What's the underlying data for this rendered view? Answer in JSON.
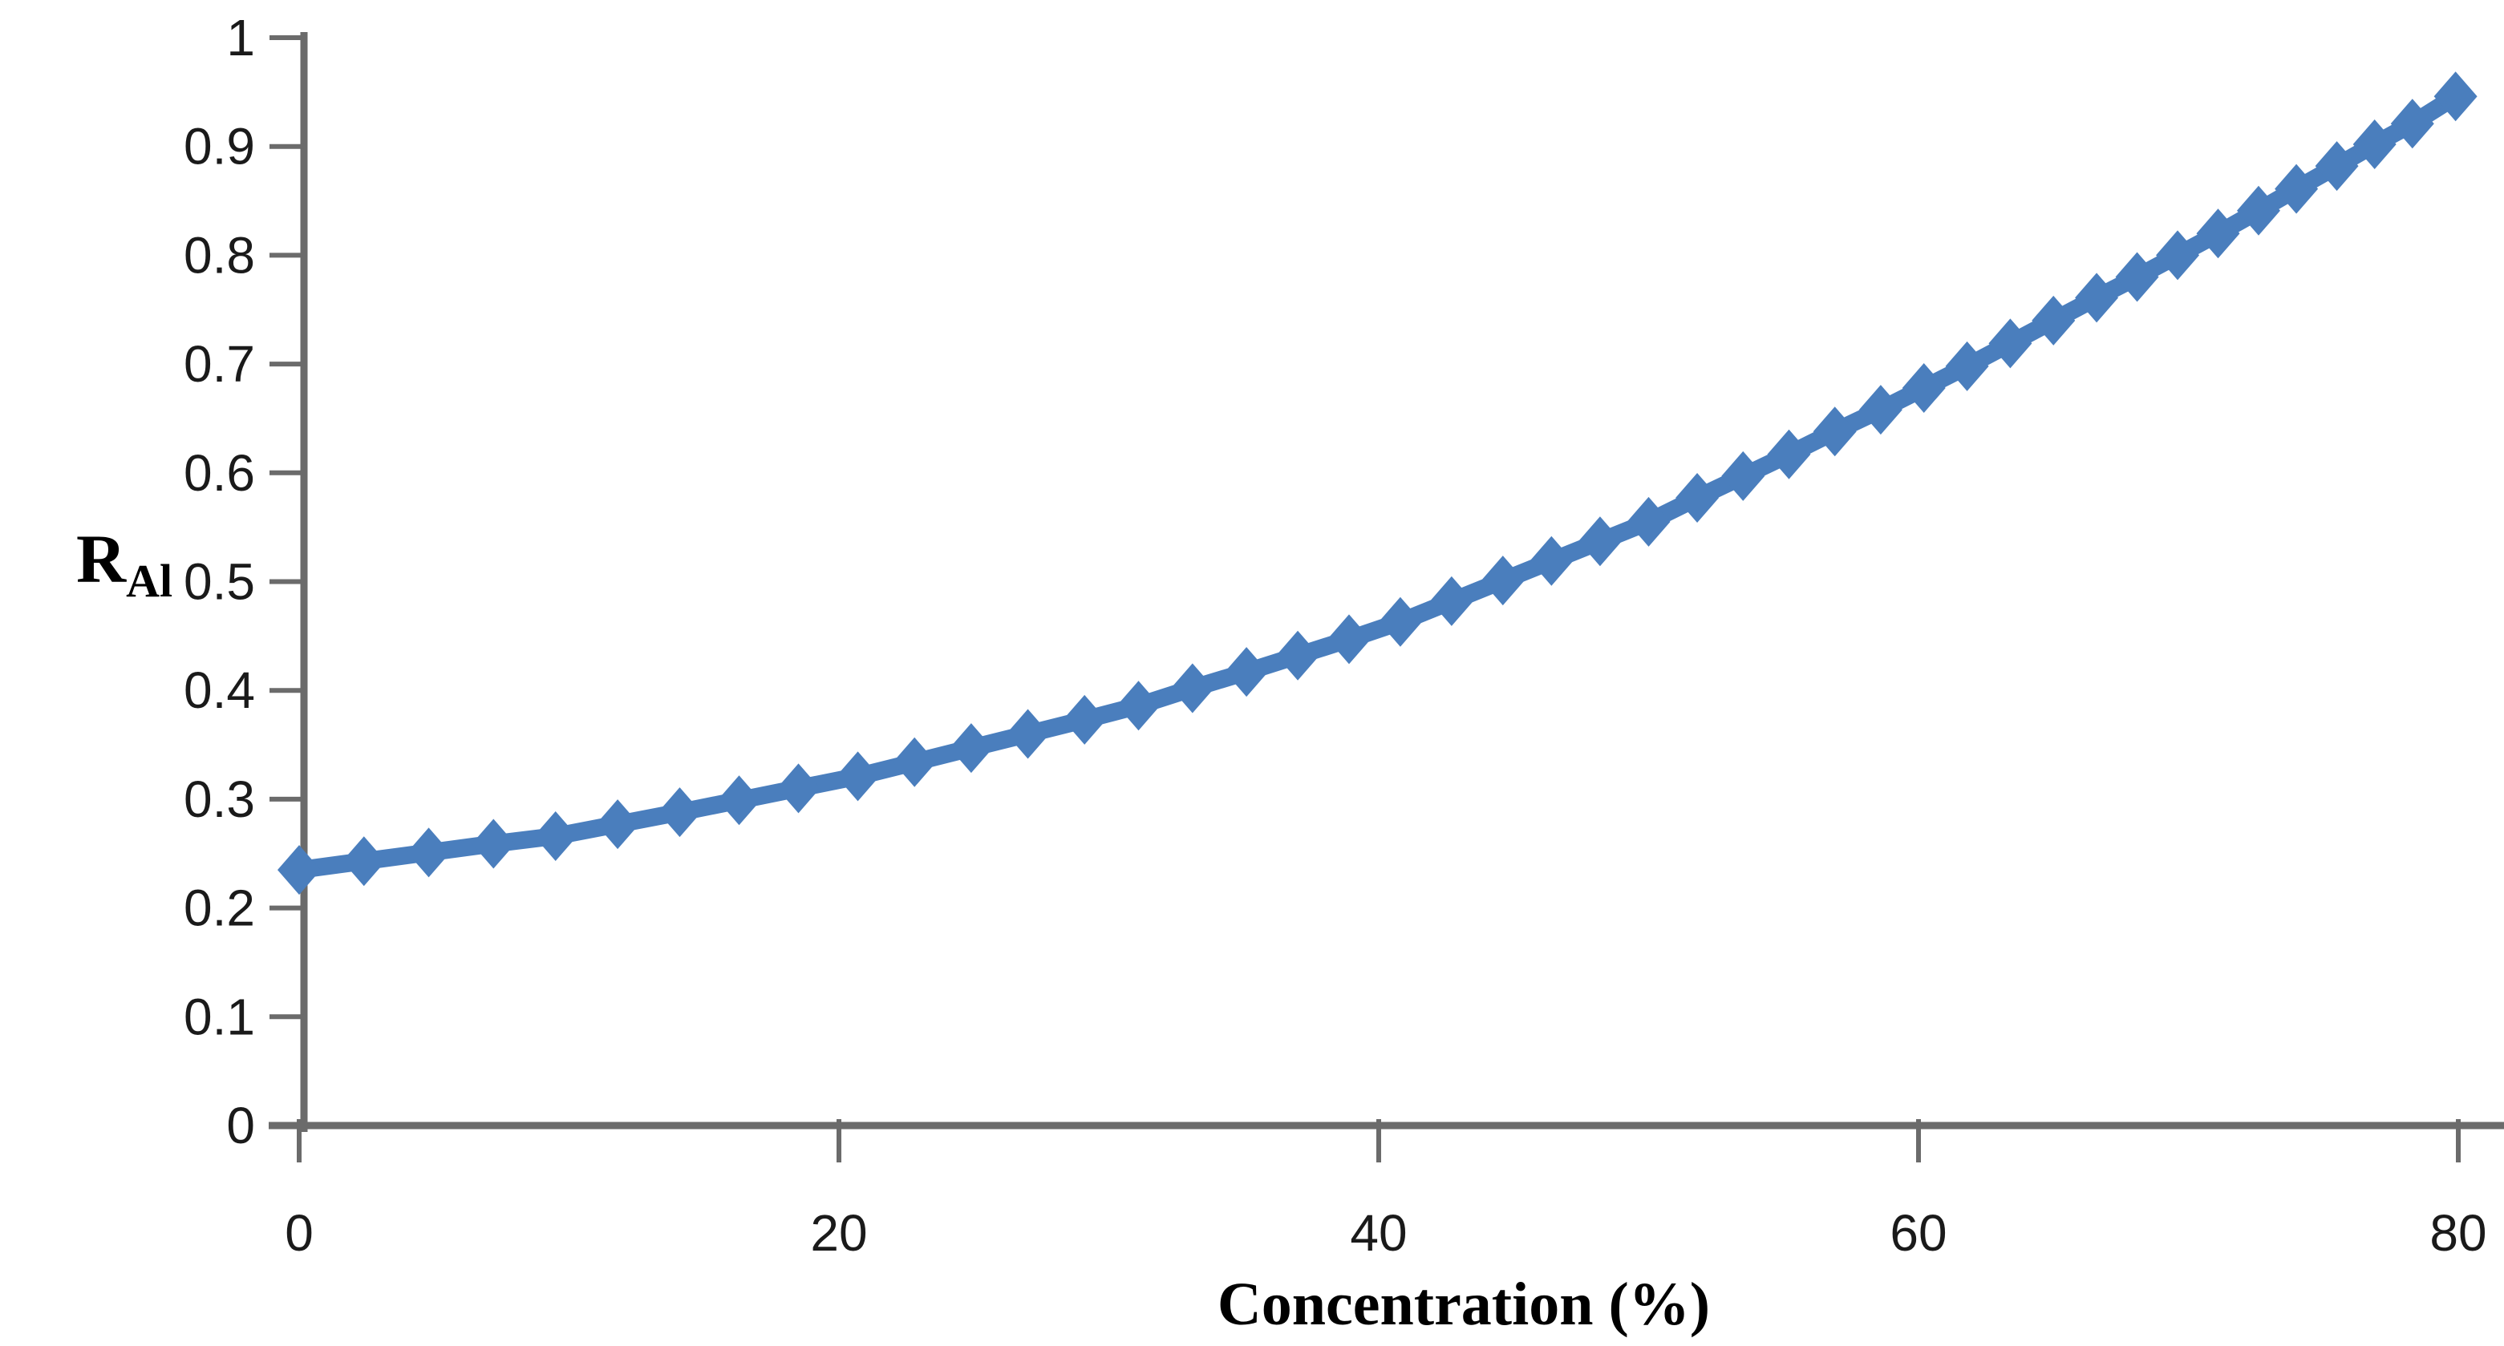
{
  "chart_data": {
    "type": "line",
    "subtype": "scatter-line-with-diamond-markers",
    "title": "",
    "xlabel": "Concentration (%)",
    "ylabel_base": "R",
    "ylabel_sub": "Al",
    "x_ticks": {
      "values": [
        0,
        20,
        40,
        60,
        80
      ],
      "labels": [
        "0",
        "20",
        "40",
        "60",
        "80"
      ]
    },
    "y_ticks": {
      "values": [
        0,
        0.1,
        0.2,
        0.3,
        0.4,
        0.5,
        0.6,
        0.7,
        0.8,
        0.9,
        1.0
      ],
      "labels": [
        "0",
        "0.1",
        "0.2",
        "0.3",
        "0.4",
        "0.5",
        "0.6",
        "0.7",
        "0.8",
        "0.9",
        "1"
      ]
    },
    "xlim": [
      0,
      81.7
    ],
    "ylim": [
      0,
      1
    ],
    "grid": false,
    "legend_position": "none",
    "colors": {
      "series": "#4a7ebd",
      "axis": "#6b6b6b",
      "tick_text": "#1a1a1a",
      "title_text": "#000000",
      "background": "#ffffff"
    },
    "series": [
      {
        "name": "RAl",
        "marker": "diamond",
        "points": [
          [
            0,
            0.235
          ],
          [
            2.4,
            0.243
          ],
          [
            4.8,
            0.251
          ],
          [
            7.2,
            0.259
          ],
          [
            9.5,
            0.266
          ],
          [
            11.8,
            0.277
          ],
          [
            14.1,
            0.288
          ],
          [
            16.3,
            0.299
          ],
          [
            18.5,
            0.31
          ],
          [
            20.7,
            0.321
          ],
          [
            22.8,
            0.334
          ],
          [
            24.9,
            0.347
          ],
          [
            27.0,
            0.36
          ],
          [
            29.1,
            0.373
          ],
          [
            31.1,
            0.386
          ],
          [
            33.1,
            0.402
          ],
          [
            35.1,
            0.417
          ],
          [
            37.0,
            0.432
          ],
          [
            38.9,
            0.447
          ],
          [
            40.8,
            0.463
          ],
          [
            42.7,
            0.482
          ],
          [
            44.6,
            0.501
          ],
          [
            46.4,
            0.519
          ],
          [
            48.2,
            0.537
          ],
          [
            50.0,
            0.555
          ],
          [
            51.8,
            0.577
          ],
          [
            53.5,
            0.597
          ],
          [
            55.2,
            0.617
          ],
          [
            56.9,
            0.638
          ],
          [
            58.6,
            0.658
          ],
          [
            60.2,
            0.678
          ],
          [
            61.8,
            0.698
          ],
          [
            63.4,
            0.719
          ],
          [
            65.0,
            0.74
          ],
          [
            66.6,
            0.761
          ],
          [
            68.1,
            0.78
          ],
          [
            69.6,
            0.8
          ],
          [
            71.1,
            0.82
          ],
          [
            72.6,
            0.841
          ],
          [
            74.0,
            0.861
          ],
          [
            75.5,
            0.882
          ],
          [
            76.9,
            0.902
          ],
          [
            78.3,
            0.921
          ],
          [
            79.9,
            0.946
          ]
        ]
      }
    ]
  }
}
